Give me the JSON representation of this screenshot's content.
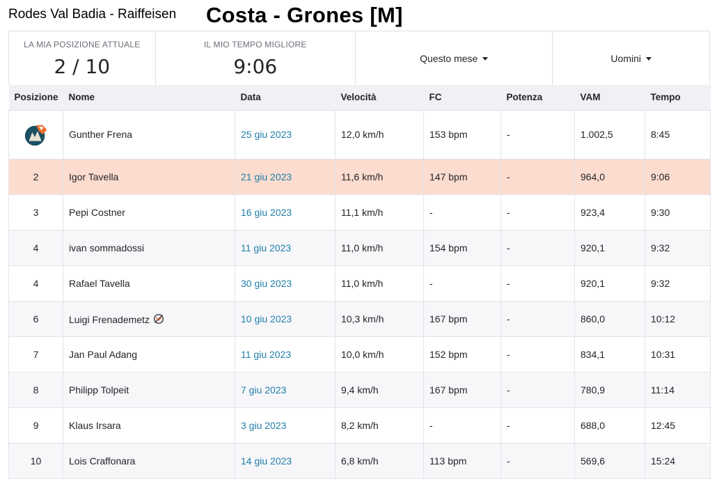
{
  "header": {
    "club_title": "Rodes Val Badia - Raiffeisen",
    "segment_title": "Costa - Grones [M]"
  },
  "stats": {
    "position_label": "LA MIA POSIZIONE ATTUALE",
    "position_value": "2 / 10",
    "best_time_label": "IL MIO TEMPO MIGLIORE",
    "best_time_value": "9:06",
    "period_filter": "Questo mese",
    "gender_filter": "Uomini"
  },
  "table": {
    "headers": [
      "Posizione",
      "Nome",
      "Data",
      "Velocità",
      "FC",
      "Potenza",
      "VAM",
      "Tempo"
    ],
    "rows": [
      {
        "pos": "",
        "name": "Gunther Frena",
        "date": "25 giu 2023",
        "speed": "12,0 km/h",
        "hr": "153 bpm",
        "power": "-",
        "vam": "1.002,5",
        "time": "8:45"
      },
      {
        "pos": "2",
        "name": "Igor Tavella",
        "date": "21 giu 2023",
        "speed": "11,6 km/h",
        "hr": "147 bpm",
        "power": "-",
        "vam": "964,0",
        "time": "9:06"
      },
      {
        "pos": "3",
        "name": "Pepi Costner",
        "date": "16 giu 2023",
        "speed": "11,1 km/h",
        "hr": "-",
        "power": "-",
        "vam": "923,4",
        "time": "9:30"
      },
      {
        "pos": "4",
        "name": "ivan sommadossi",
        "date": "11 giu 2023",
        "speed": "11,0 km/h",
        "hr": "154 bpm",
        "power": "-",
        "vam": "920,1",
        "time": "9:32"
      },
      {
        "pos": "4",
        "name": "Rafael Tavella",
        "date": "30 giu 2023",
        "speed": "11,0 km/h",
        "hr": "-",
        "power": "-",
        "vam": "920,1",
        "time": "9:32"
      },
      {
        "pos": "6",
        "name": "Luigi Frenademetz",
        "date": "10 giu 2023",
        "speed": "10,3 km/h",
        "hr": "167 bpm",
        "power": "-",
        "vam": "860,0",
        "time": "10:12"
      },
      {
        "pos": "7",
        "name": "Jan Paul Adang",
        "date": "11 giu 2023",
        "speed": "10,0 km/h",
        "hr": "152 bpm",
        "power": "-",
        "vam": "834,1",
        "time": "10:31"
      },
      {
        "pos": "8",
        "name": "Philipp Tolpeit",
        "date": "7 giu 2023",
        "speed": "9,4 km/h",
        "hr": "167 bpm",
        "power": "-",
        "vam": "780,9",
        "time": "11:14"
      },
      {
        "pos": "9",
        "name": "Klaus Irsara",
        "date": "3 giu 2023",
        "speed": "8,2 km/h",
        "hr": "-",
        "power": "-",
        "vam": "688,0",
        "time": "12:45"
      },
      {
        "pos": "10",
        "name": "Lois Craffonara",
        "date": "14 giu 2023",
        "speed": "6,8 km/h",
        "hr": "113 bpm",
        "power": "-",
        "vam": "569,6",
        "time": "15:24"
      }
    ]
  },
  "colors": {
    "highlight_row": "#fcdccf",
    "link": "#1f7ea8",
    "header_bg": "#f0f0f5",
    "crown_accent": "#f26b2a"
  },
  "icons": {
    "first_place": "kom-crown-icon",
    "badge": "badge-no-icon"
  }
}
